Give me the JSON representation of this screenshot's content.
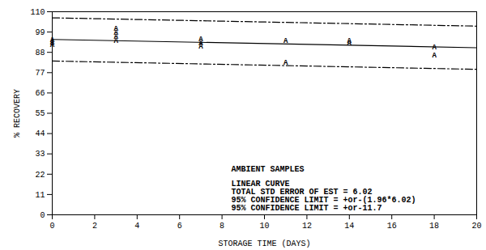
{
  "chart_data": {
    "type": "scatter",
    "xlabel": "STORAGE TIME (DAYS)",
    "ylabel": "% RECOVERY",
    "xlim": [
      0,
      20
    ],
    "xticks": [
      0,
      2,
      4,
      6,
      8,
      10,
      12,
      14,
      16,
      18,
      20
    ],
    "ylim": [
      0,
      110
    ],
    "yticks": [
      0,
      11,
      22,
      33,
      44,
      55,
      66,
      77,
      88,
      99,
      110
    ],
    "grid": false,
    "series": [
      {
        "type": "scatter",
        "marker": "A",
        "color": "#000000",
        "x": [
          0,
          0,
          0,
          3,
          3,
          3,
          3,
          7,
          7,
          7,
          11,
          11,
          14,
          14,
          18,
          18
        ],
        "values": [
          95,
          93.4,
          92,
          100.9,
          98.7,
          96.5,
          94.3,
          95.2,
          93,
          91.2,
          94.3,
          82.5,
          94.3,
          93,
          90.8,
          86.4
        ]
      },
      {
        "type": "line",
        "line_style": "solid",
        "color": "#000000",
        "x": [
          0,
          20
        ],
        "values": [
          95,
          90.5
        ]
      },
      {
        "type": "line",
        "line_style": "dash-dot",
        "color": "#000000",
        "x": [
          0,
          20
        ],
        "values": [
          106.7,
          102.2
        ]
      },
      {
        "type": "line",
        "line_style": "dash-dot",
        "color": "#000000",
        "x": [
          0,
          20
        ],
        "values": [
          83.3,
          78.8
        ]
      }
    ],
    "annotations": [
      "AMBIENT SAMPLES",
      "LINEAR CURVE",
      "TOTAL STD ERROR OF EST = 6.02",
      "95% CONFIDENCE LIMIT = +or-(1.96*6.02)",
      "95% CONFIDENCE LIMIT = +or-11.7"
    ]
  }
}
